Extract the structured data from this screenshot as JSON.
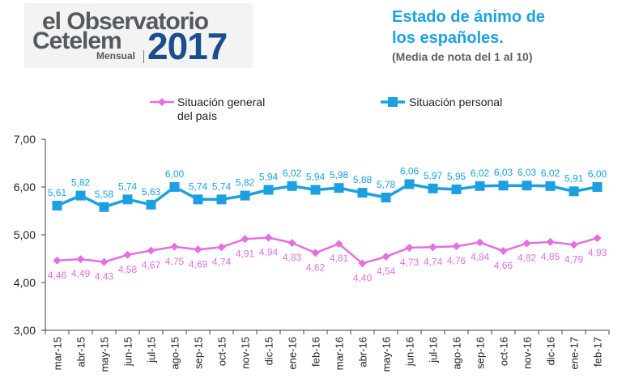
{
  "logo": {
    "line1": "el Observatorio",
    "line2": "Cetelem",
    "sub": "Mensual",
    "year": "2017"
  },
  "header": {
    "title_line1": "Estado de ánimo de",
    "title_line2": "los españoles.",
    "subtitle": "(Media de nota del 1 al 10)"
  },
  "colors": {
    "personal": "#1ba1e2",
    "general": "#e36fe0",
    "axis": "#404040",
    "title": "#1ba1e2"
  },
  "chart_data": {
    "type": "line",
    "categories": [
      "mar-15",
      "abr-15",
      "may-15",
      "jun-15",
      "jul-15",
      "ago-15",
      "sep-15",
      "oct-15",
      "nov-15",
      "dic-15",
      "ene-16",
      "feb-16",
      "mar-16",
      "abr-16",
      "may-16",
      "jun-16",
      "jul-16",
      "ago-16",
      "sep-16",
      "oct-16",
      "nov-16",
      "dic-16",
      "ene-17",
      "feb-17"
    ],
    "series": [
      {
        "name": "Situación personal",
        "marker": "square",
        "values": [
          5.61,
          5.82,
          5.58,
          5.74,
          5.63,
          6.0,
          5.74,
          5.74,
          5.82,
          5.94,
          6.02,
          5.94,
          5.98,
          5.88,
          5.78,
          6.06,
          5.97,
          5.95,
          6.02,
          6.03,
          6.03,
          6.02,
          5.91,
          6.0
        ],
        "labels": [
          "5,61",
          "5,82",
          "5,58",
          "5,74",
          "5,63",
          "6,00",
          "5,74",
          "5,74",
          "5,82",
          "5,94",
          "6,02",
          "5,94",
          "5,98",
          "5,88",
          "5,78",
          "6,06",
          "5,97",
          "5,95",
          "6,02",
          "6,03",
          "6,03",
          "6,02",
          "5,91",
          "6,00"
        ]
      },
      {
        "name": "Situación general del país",
        "name_lines": [
          "Situación general",
          "del país"
        ],
        "marker": "diamond",
        "values": [
          4.46,
          4.49,
          4.43,
          4.58,
          4.67,
          4.75,
          4.69,
          4.74,
          4.91,
          4.94,
          4.83,
          4.62,
          4.81,
          4.4,
          4.54,
          4.73,
          4.74,
          4.76,
          4.84,
          4.66,
          4.82,
          4.85,
          4.79,
          4.93
        ],
        "labels": [
          "4,46",
          "4,49",
          "4,43",
          "4,58",
          "4,67",
          "4,75",
          "4,69",
          "4,74",
          "4,91",
          "4,94",
          "4,83",
          "4,62",
          "4,81",
          "4,40",
          "4,54",
          "4,73",
          "4,74",
          "4,76",
          "4,84",
          "4,66",
          "4,82",
          "4,85",
          "4,79",
          "4,93"
        ]
      }
    ],
    "ylim": [
      3,
      7
    ],
    "yticks": [
      "3,00",
      "4,00",
      "5,00",
      "6,00",
      "7,00"
    ],
    "ytick_values": [
      3,
      4,
      5,
      6,
      7
    ],
    "grid": false,
    "legend": "top"
  }
}
